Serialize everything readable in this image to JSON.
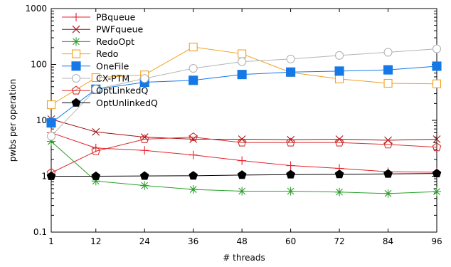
{
  "chart_data": {
    "type": "line",
    "title": "",
    "xlabel": "# threads",
    "ylabel": "pwbs per operation",
    "yscale": "log",
    "xlim": [
      1,
      96
    ],
    "ylim": [
      0.1,
      1000
    ],
    "x": [
      1,
      12,
      24,
      36,
      48,
      60,
      72,
      84,
      96
    ],
    "x_ticks": [
      "1",
      "12",
      "24",
      "36",
      "48",
      "60",
      "72",
      "84",
      "96"
    ],
    "y_ticks": [
      {
        "value": 0.1,
        "label": "0.1"
      },
      {
        "value": 1,
        "label": "1"
      },
      {
        "value": 10,
        "label": "10"
      },
      {
        "value": 100,
        "label": "100"
      },
      {
        "value": 1000,
        "label": "1000"
      }
    ],
    "legend_position": "top-left",
    "grid": false,
    "series": [
      {
        "name": "PBqueue",
        "color": "#e8202a",
        "marker": "plus",
        "values": [
          6.0,
          3.2,
          2.9,
          2.4,
          1.9,
          1.55,
          1.38,
          1.2,
          1.18
        ]
      },
      {
        "name": "PWFqueue",
        "color": "#a01010",
        "marker": "x",
        "values": [
          10.5,
          6.2,
          5.0,
          4.6,
          4.6,
          4.5,
          4.6,
          4.4,
          4.6
        ]
      },
      {
        "name": "RedoOpt",
        "color": "#28a028",
        "marker": "star",
        "values": [
          4.2,
          0.82,
          0.68,
          0.58,
          0.54,
          0.54,
          0.52,
          0.49,
          0.53
        ]
      },
      {
        "name": "Redo",
        "color": "#f0a020",
        "marker": "open-square",
        "values": [
          19,
          58,
          65,
          205,
          155,
          72,
          55,
          46,
          45
        ]
      },
      {
        "name": "OneFile",
        "color": "#1478e6",
        "marker": "filled-square",
        "values": [
          9,
          36,
          48,
          52,
          66,
          73,
          76,
          80,
          93
        ]
      },
      {
        "name": "CX-PTM",
        "color": "#b4b4b4",
        "marker": "open-circle",
        "values": [
          5.2,
          36,
          56,
          85,
          112,
          125,
          145,
          165,
          190
        ]
      },
      {
        "name": "OptLinkedQ",
        "color": "#d83030",
        "marker": "open-pentagon",
        "values": [
          1.15,
          2.8,
          4.6,
          5.0,
          4.0,
          4.0,
          4.0,
          3.7,
          3.3
        ]
      },
      {
        "name": "OptUnlinkedQ",
        "color": "#000000",
        "marker": "filled-pentagon",
        "values": [
          1.0,
          1.0,
          1.01,
          1.02,
          1.05,
          1.07,
          1.08,
          1.1,
          1.12
        ]
      }
    ]
  }
}
